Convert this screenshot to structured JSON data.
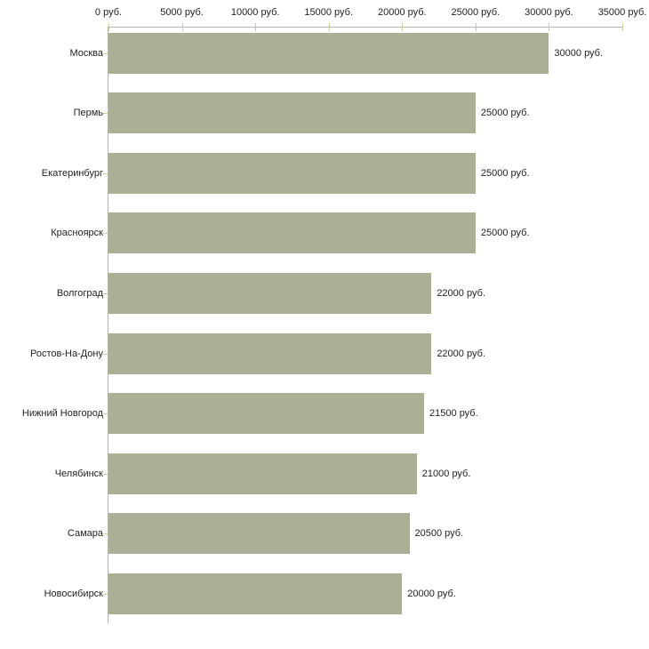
{
  "chart_data": {
    "type": "bar",
    "orientation": "horizontal",
    "title": "",
    "xlabel": "",
    "ylabel": "",
    "unit": "руб.",
    "categories": [
      "Москва",
      "Пермь",
      "Екатеринбург",
      "Красноярск",
      "Волгоград",
      "Ростов-На-Дону",
      "Нижний Новгород",
      "Челябинск",
      "Самара",
      "Новосибирск"
    ],
    "values": [
      30000,
      25000,
      25000,
      25000,
      22000,
      22000,
      21500,
      21000,
      20500,
      20000
    ],
    "value_labels": [
      "30000 руб.",
      "25000 руб.",
      "25000 руб.",
      "25000 руб.",
      "22000 руб.",
      "22000 руб.",
      "21500 руб.",
      "21000 руб.",
      "20500 руб.",
      "20000 руб."
    ],
    "x_ticks": [
      0,
      5000,
      10000,
      15000,
      20000,
      25000,
      30000,
      35000
    ],
    "x_tick_labels": [
      "0 руб.",
      "5000 руб.",
      "10000 руб.",
      "15000 руб.",
      "20000 руб.",
      "25000 руб.",
      "30000 руб.",
      "35000 руб."
    ],
    "xlim": [
      0,
      35000
    ],
    "grid": false,
    "legend": false,
    "colors": {
      "bar": "#a9b096",
      "axis_line": "#b6b6b6",
      "tick": "#cccc99",
      "text": "#222222",
      "background": "#ffffff"
    }
  }
}
